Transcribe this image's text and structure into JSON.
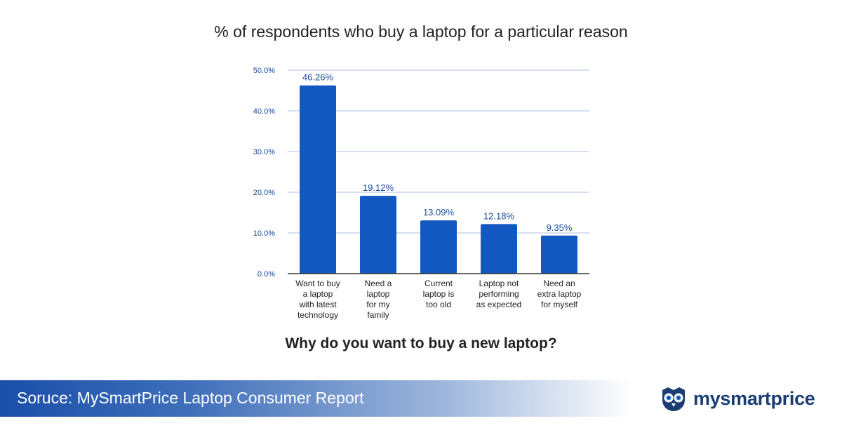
{
  "chart_data": {
    "type": "bar",
    "title": "% of respondents who buy a laptop for a particular reason",
    "xlabel": "Why do you want to buy a new laptop?",
    "ylabel": "",
    "ylim": [
      0,
      50
    ],
    "yticks": [
      "0.0%",
      "10.0%",
      "20.0%",
      "30.0%",
      "40.0%",
      "50.0%"
    ],
    "grid": true,
    "categories": [
      [
        "Want to buy",
        "a laptop",
        "with latest",
        "technology"
      ],
      [
        "Need a",
        "laptop",
        "for my",
        "family"
      ],
      [
        "Current",
        "laptop is",
        "too old"
      ],
      [
        "Laptop not",
        "performing",
        "as expected"
      ],
      [
        "Need an",
        "extra laptop",
        "for myself"
      ]
    ],
    "values": [
      46.26,
      19.12,
      13.09,
      12.18,
      9.35
    ],
    "value_labels": [
      "46.26%",
      "19.12%",
      "13.09%",
      "12.18%",
      "9.35%"
    ],
    "bar_color": "#1158c0",
    "label_color": "#1a4c9c",
    "grid_color": "#c6d6ec"
  },
  "footer": {
    "source": "Soruce: MySmartPrice Laptop Consumer Report"
  },
  "logo": {
    "text": "mysmartprice",
    "icon": "owl-logo-icon",
    "color": "#1c3d73"
  }
}
